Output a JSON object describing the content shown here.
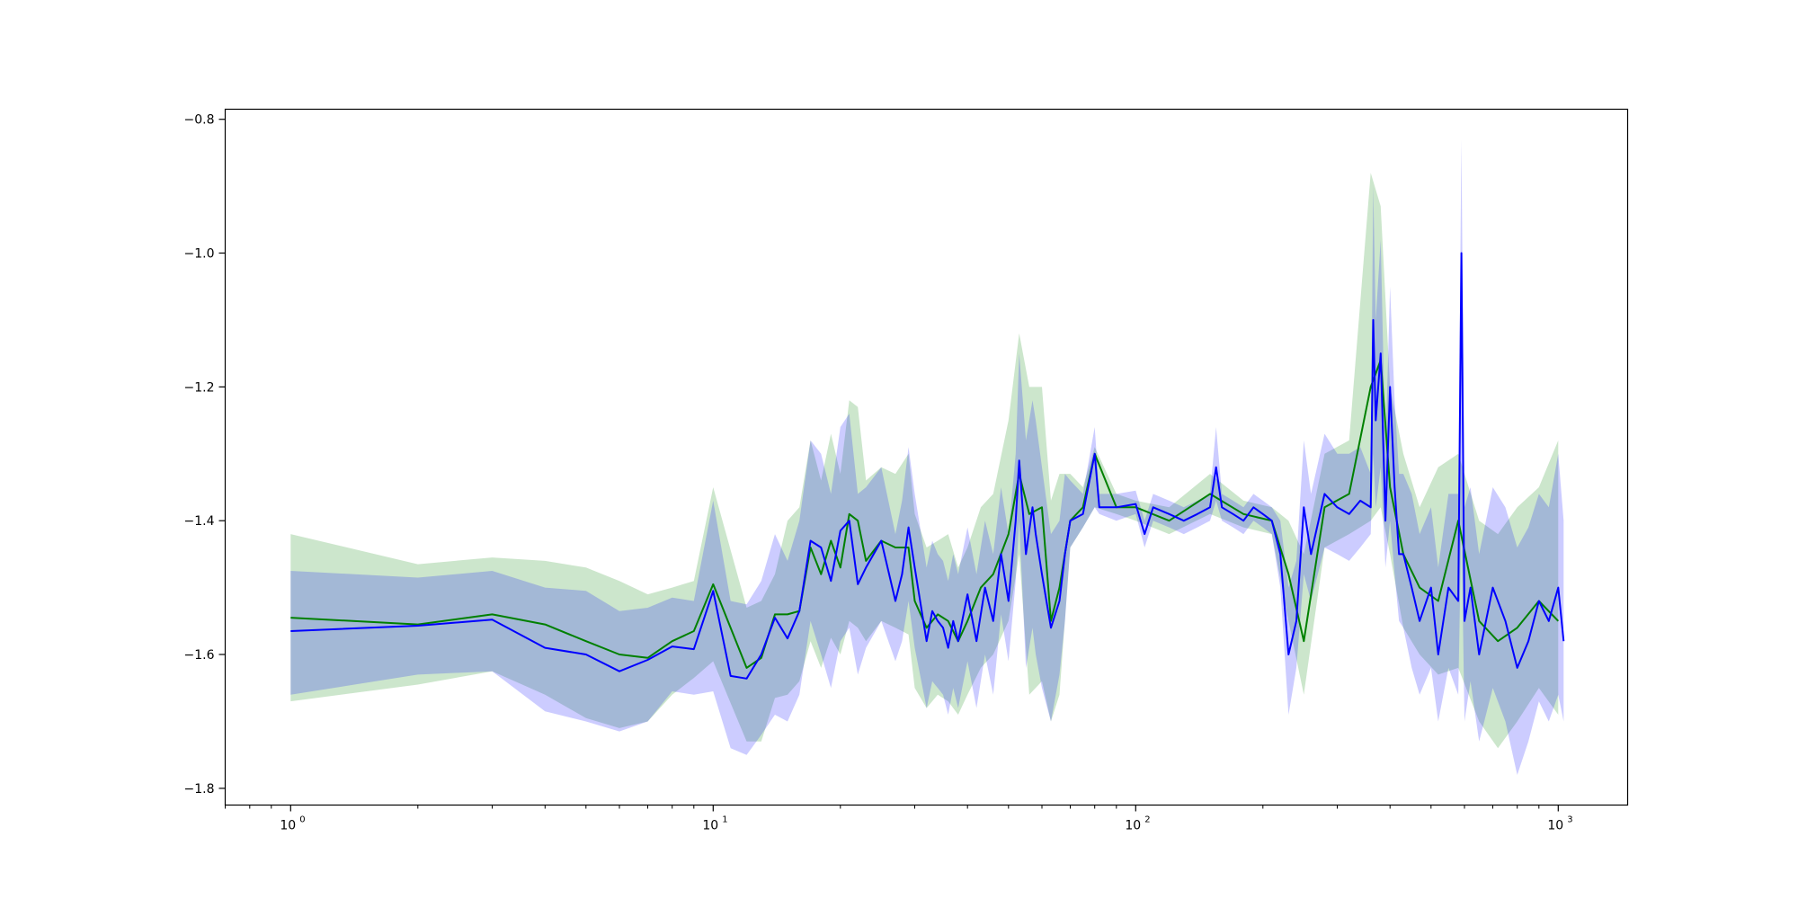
{
  "chart_data": {
    "type": "line",
    "title": "",
    "xlabel": "",
    "ylabel": "",
    "xscale": "log",
    "xlim": [
      0.7,
      1460
    ],
    "ylim": [
      -1.825,
      -0.785
    ],
    "grid": false,
    "legend": "none",
    "x_ticks": [
      {
        "value": 1,
        "base": "10",
        "exp": "0"
      },
      {
        "value": 10,
        "base": "10",
        "exp": "1"
      },
      {
        "value": 100,
        "base": "10",
        "exp": "2"
      },
      {
        "value": 1000,
        "base": "10",
        "exp": "3"
      }
    ],
    "y_ticks": [
      {
        "value": -0.8,
        "label": "−0.8"
      },
      {
        "value": -1.0,
        "label": "−1.0"
      },
      {
        "value": -1.2,
        "label": "−1.2"
      },
      {
        "value": -1.4,
        "label": "−1.4"
      },
      {
        "value": -1.6,
        "label": "−1.6"
      },
      {
        "value": -1.8,
        "label": "−1.8"
      }
    ],
    "series": [
      {
        "color": "#008000",
        "band_color": "#008000",
        "x": [
          1,
          2,
          3,
          4,
          5,
          6,
          7,
          8,
          9,
          10,
          12,
          13,
          14,
          15,
          16,
          17,
          18,
          19,
          20,
          21,
          22,
          23,
          25,
          27,
          29,
          30,
          32,
          34,
          36,
          38,
          40,
          43,
          46,
          50,
          53,
          56,
          60,
          63,
          66,
          70,
          75,
          80,
          90,
          100,
          120,
          150,
          180,
          210,
          230,
          250,
          280,
          320,
          360,
          380,
          400,
          430,
          470,
          520,
          580,
          650,
          720,
          800,
          900,
          1000
        ],
        "y": [
          -1.545,
          -1.555,
          -1.54,
          -1.555,
          -1.58,
          -1.6,
          -1.605,
          -1.58,
          -1.565,
          -1.495,
          -1.62,
          -1.605,
          -1.54,
          -1.54,
          -1.535,
          -1.44,
          -1.48,
          -1.43,
          -1.47,
          -1.39,
          -1.4,
          -1.46,
          -1.43,
          -1.44,
          -1.44,
          -1.52,
          -1.56,
          -1.54,
          -1.55,
          -1.58,
          -1.55,
          -1.5,
          -1.48,
          -1.42,
          -1.33,
          -1.39,
          -1.38,
          -1.55,
          -1.5,
          -1.4,
          -1.38,
          -1.3,
          -1.38,
          -1.38,
          -1.4,
          -1.36,
          -1.39,
          -1.4,
          -1.48,
          -1.58,
          -1.38,
          -1.36,
          -1.2,
          -1.16,
          -1.35,
          -1.45,
          -1.5,
          -1.52,
          -1.4,
          -1.55,
          -1.58,
          -1.56,
          -1.52,
          -1.55
        ],
        "lower": [
          -1.67,
          -1.645,
          -1.625,
          -1.66,
          -1.695,
          -1.71,
          -1.7,
          -1.66,
          -1.635,
          -1.61,
          -1.73,
          -1.73,
          -1.665,
          -1.66,
          -1.64,
          -1.58,
          -1.62,
          -1.575,
          -1.6,
          -1.55,
          -1.56,
          -1.58,
          -1.55,
          -1.56,
          -1.57,
          -1.65,
          -1.68,
          -1.66,
          -1.67,
          -1.69,
          -1.66,
          -1.62,
          -1.6,
          -1.55,
          -1.45,
          -1.66,
          -1.64,
          -1.7,
          -1.66,
          -1.44,
          -1.41,
          -1.38,
          -1.39,
          -1.4,
          -1.42,
          -1.39,
          -1.41,
          -1.42,
          -1.55,
          -1.66,
          -1.44,
          -1.42,
          -1.4,
          -1.38,
          -1.45,
          -1.56,
          -1.6,
          -1.63,
          -1.62,
          -1.7,
          -1.74,
          -1.7,
          -1.65,
          -1.69
        ],
        "upper": [
          -1.42,
          -1.465,
          -1.455,
          -1.46,
          -1.47,
          -1.49,
          -1.51,
          -1.5,
          -1.49,
          -1.35,
          -1.53,
          -1.52,
          -1.48,
          -1.4,
          -1.38,
          -1.28,
          -1.34,
          -1.27,
          -1.33,
          -1.22,
          -1.23,
          -1.34,
          -1.32,
          -1.33,
          -1.3,
          -1.39,
          -1.44,
          -1.43,
          -1.42,
          -1.47,
          -1.44,
          -1.38,
          -1.36,
          -1.25,
          -1.12,
          -1.2,
          -1.2,
          -1.37,
          -1.33,
          -1.33,
          -1.35,
          -1.29,
          -1.36,
          -1.37,
          -1.38,
          -1.33,
          -1.37,
          -1.38,
          -1.4,
          -1.45,
          -1.3,
          -1.28,
          -0.88,
          -0.93,
          -1.2,
          -1.3,
          -1.38,
          -1.32,
          -1.3,
          -1.4,
          -1.42,
          -1.38,
          -1.35,
          -1.28
        ]
      },
      {
        "color": "#0000ff",
        "band_color": "#0000ff",
        "x": [
          1,
          2,
          3,
          4,
          5,
          6,
          7,
          8,
          9,
          10,
          11,
          12,
          13,
          14,
          15,
          16,
          17,
          18,
          19,
          20,
          21,
          22,
          23,
          25,
          27,
          28,
          29,
          30,
          32,
          33,
          34,
          35,
          36,
          37,
          38,
          40,
          42,
          44,
          46,
          48,
          50,
          52,
          53,
          55,
          57,
          58,
          60,
          63,
          66,
          68,
          70,
          75,
          80,
          82,
          90,
          100,
          105,
          110,
          120,
          130,
          140,
          150,
          155,
          160,
          170,
          180,
          190,
          200,
          210,
          220,
          230,
          240,
          250,
          260,
          280,
          300,
          320,
          340,
          360,
          365,
          370,
          380,
          390,
          400,
          410,
          420,
          430,
          450,
          470,
          500,
          520,
          550,
          580,
          590,
          600,
          620,
          650,
          700,
          750,
          800,
          850,
          900,
          950,
          1000,
          1030
        ],
        "y": [
          -1.565,
          -1.557,
          -1.548,
          -1.59,
          -1.6,
          -1.625,
          -1.608,
          -1.588,
          -1.592,
          -1.505,
          -1.632,
          -1.636,
          -1.6,
          -1.545,
          -1.576,
          -1.535,
          -1.43,
          -1.44,
          -1.49,
          -1.415,
          -1.4,
          -1.495,
          -1.47,
          -1.43,
          -1.52,
          -1.48,
          -1.41,
          -1.47,
          -1.58,
          -1.535,
          -1.55,
          -1.56,
          -1.59,
          -1.55,
          -1.58,
          -1.51,
          -1.58,
          -1.5,
          -1.55,
          -1.45,
          -1.52,
          -1.4,
          -1.31,
          -1.45,
          -1.38,
          -1.42,
          -1.48,
          -1.56,
          -1.52,
          -1.45,
          -1.4,
          -1.39,
          -1.3,
          -1.38,
          -1.38,
          -1.375,
          -1.42,
          -1.38,
          -1.39,
          -1.4,
          -1.39,
          -1.38,
          -1.32,
          -1.38,
          -1.39,
          -1.4,
          -1.38,
          -1.39,
          -1.4,
          -1.45,
          -1.6,
          -1.55,
          -1.38,
          -1.45,
          -1.36,
          -1.38,
          -1.39,
          -1.37,
          -1.38,
          -1.1,
          -1.25,
          -1.15,
          -1.4,
          -1.2,
          -1.35,
          -1.45,
          -1.45,
          -1.5,
          -1.55,
          -1.5,
          -1.6,
          -1.5,
          -1.52,
          -1.0,
          -1.55,
          -1.5,
          -1.6,
          -1.5,
          -1.55,
          -1.62,
          -1.58,
          -1.52,
          -1.55,
          -1.5,
          -1.58
        ],
        "lower": [
          -1.66,
          -1.63,
          -1.625,
          -1.685,
          -1.7,
          -1.715,
          -1.7,
          -1.655,
          -1.66,
          -1.655,
          -1.74,
          -1.75,
          -1.72,
          -1.69,
          -1.7,
          -1.66,
          -1.55,
          -1.6,
          -1.65,
          -1.58,
          -1.56,
          -1.63,
          -1.59,
          -1.55,
          -1.61,
          -1.58,
          -1.52,
          -1.59,
          -1.68,
          -1.64,
          -1.65,
          -1.66,
          -1.69,
          -1.65,
          -1.68,
          -1.61,
          -1.68,
          -1.6,
          -1.66,
          -1.54,
          -1.61,
          -1.49,
          -1.4,
          -1.62,
          -1.56,
          -1.6,
          -1.65,
          -1.7,
          -1.63,
          -1.55,
          -1.44,
          -1.41,
          -1.38,
          -1.39,
          -1.4,
          -1.39,
          -1.44,
          -1.4,
          -1.41,
          -1.42,
          -1.41,
          -1.4,
          -1.37,
          -1.4,
          -1.41,
          -1.42,
          -1.4,
          -1.41,
          -1.42,
          -1.5,
          -1.69,
          -1.62,
          -1.48,
          -1.52,
          -1.44,
          -1.45,
          -1.46,
          -1.44,
          -1.42,
          -1.3,
          -1.38,
          -1.32,
          -1.47,
          -1.4,
          -1.48,
          -1.55,
          -1.56,
          -1.62,
          -1.66,
          -1.62,
          -1.7,
          -1.62,
          -1.66,
          -1.4,
          -1.7,
          -1.64,
          -1.73,
          -1.65,
          -1.7,
          -1.78,
          -1.73,
          -1.67,
          -1.7,
          -1.66,
          -1.7
        ],
        "upper": [
          -1.475,
          -1.485,
          -1.475,
          -1.5,
          -1.505,
          -1.535,
          -1.53,
          -1.515,
          -1.52,
          -1.37,
          -1.52,
          -1.525,
          -1.49,
          -1.42,
          -1.46,
          -1.4,
          -1.28,
          -1.3,
          -1.36,
          -1.26,
          -1.24,
          -1.36,
          -1.35,
          -1.32,
          -1.42,
          -1.37,
          -1.29,
          -1.36,
          -1.47,
          -1.43,
          -1.45,
          -1.46,
          -1.49,
          -1.45,
          -1.48,
          -1.41,
          -1.48,
          -1.4,
          -1.45,
          -1.35,
          -1.42,
          -1.3,
          -1.15,
          -1.28,
          -1.22,
          -1.25,
          -1.32,
          -1.42,
          -1.4,
          -1.33,
          -1.34,
          -1.36,
          -1.26,
          -1.36,
          -1.36,
          -1.355,
          -1.4,
          -1.36,
          -1.37,
          -1.38,
          -1.37,
          -1.36,
          -1.26,
          -1.36,
          -1.37,
          -1.38,
          -1.36,
          -1.37,
          -1.38,
          -1.4,
          -1.5,
          -1.46,
          -1.28,
          -1.36,
          -1.27,
          -1.3,
          -1.3,
          -1.29,
          -1.33,
          -0.9,
          -1.1,
          -0.98,
          -1.3,
          -1.05,
          -1.22,
          -1.33,
          -1.33,
          -1.36,
          -1.42,
          -1.38,
          -1.47,
          -1.36,
          -1.36,
          -0.83,
          -1.38,
          -1.35,
          -1.45,
          -1.35,
          -1.38,
          -1.44,
          -1.41,
          -1.36,
          -1.38,
          -1.3,
          -1.4
        ]
      }
    ]
  }
}
